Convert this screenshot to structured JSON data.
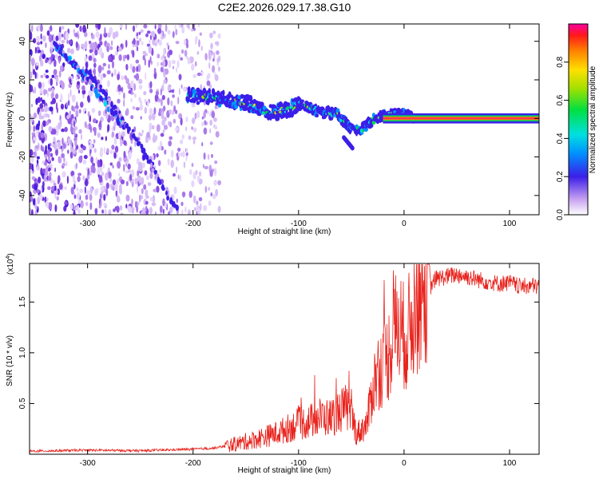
{
  "figure": {
    "title": "C2E2.2026.029.17.38.G10"
  },
  "colors": {
    "line": "#e8231d",
    "axis": "#000000",
    "noise": "#8a2be2",
    "ridge_core": "#ff2f5a"
  },
  "chart_data": [
    {
      "type": "heatmap",
      "title": "C2E2.2026.029.17.38.G10",
      "xlabel": "Height of straight line (km)",
      "ylabel": "Frequency (Hz)",
      "xlim": [
        -355,
        128
      ],
      "ylim": [
        -50,
        49
      ],
      "x_ticks": [
        -300,
        -200,
        -100,
        0,
        100
      ],
      "y_ticks": [
        -40,
        -20,
        0,
        20,
        40
      ],
      "colorbar": {
        "label": "Normalized spectral amplitude",
        "range": [
          0,
          1
        ],
        "ticks": [
          0.0,
          0.2,
          0.4,
          0.6,
          0.8
        ],
        "colormap": "rainbow"
      },
      "features": [
        {
          "name": "noise region",
          "x_range": [
            -355,
            -175
          ]
        },
        {
          "name": "ridge",
          "points": [
            [
              -205,
              12
            ],
            [
              -170,
              10
            ],
            [
              -150,
              8
            ],
            [
              -130,
              3
            ],
            [
              -110,
              4
            ],
            [
              -100,
              8
            ],
            [
              -90,
              6
            ],
            [
              -80,
              3
            ],
            [
              -65,
              3
            ],
            [
              -50,
              -5
            ],
            [
              -40,
              -6
            ],
            [
              -30,
              -1
            ],
            [
              -20,
              1
            ],
            [
              -10,
              2
            ],
            [
              0,
              2
            ],
            [
              10,
              0
            ],
            [
              50,
              0
            ],
            [
              128,
              0
            ]
          ]
        },
        {
          "name": "diagonal streak A",
          "points": [
            [
              -330,
              38
            ],
            [
              -300,
              20
            ],
            [
              -265,
              -5
            ]
          ]
        },
        {
          "name": "diagonal streak B",
          "points": [
            [
              -300,
              25
            ],
            [
              -255,
              -10
            ],
            [
              -215,
              -48
            ]
          ]
        },
        {
          "name": "satellite blob",
          "points": [
            [
              -57,
              -10
            ],
            [
              -48,
              -16
            ]
          ]
        }
      ]
    },
    {
      "type": "line",
      "title": "",
      "xlabel": "Height of straight line (km)",
      "ylabel": "SNR (10 * v/v)",
      "y_multiplier": "(x10",
      "y_multiplier_exp": "4",
      "y_multiplier_close": ")",
      "xlim": [
        -355,
        128
      ],
      "ylim": [
        0,
        18800
      ],
      "x_ticks": [
        -300,
        -200,
        -100,
        0,
        100
      ],
      "y_ticks": [
        0.5,
        1.0,
        1.5
      ],
      "y_tick_labels": [
        "0.5",
        "1.0",
        "1.5"
      ],
      "series": [
        {
          "name": "SNR",
          "x": [
            -355,
            -300,
            -250,
            -200,
            -180,
            -160,
            -140,
            -120,
            -100,
            -90,
            -80,
            -70,
            -60,
            -55,
            -50,
            -45,
            -40,
            -35,
            -30,
            -25,
            -20,
            -15,
            -10,
            -5,
            0,
            5,
            10,
            15,
            20,
            25,
            30,
            40,
            50,
            60,
            70,
            80,
            90,
            100,
            110,
            120,
            128
          ],
          "y": [
            300,
            400,
            350,
            500,
            600,
            1000,
            1500,
            2100,
            3000,
            3200,
            3700,
            3600,
            4300,
            4600,
            4000,
            2000,
            2500,
            3000,
            6500,
            8200,
            8800,
            9700,
            12000,
            12800,
            11500,
            12300,
            14300,
            15200,
            16500,
            16500,
            17300,
            17500,
            17700,
            17500,
            17200,
            17000,
            16800,
            16900,
            16500,
            16600,
            16500
          ]
        }
      ]
    }
  ]
}
